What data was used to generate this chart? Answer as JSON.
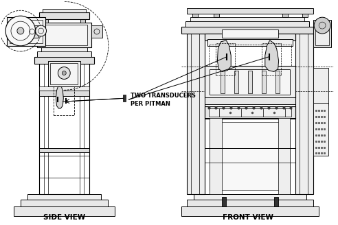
{
  "background_color": "#ffffff",
  "line_color": "#000000",
  "side_view_label": "SIDE VIEW",
  "front_view_label": "FRONT VIEW",
  "annotation_text": "TWO TRANSDUCERS\nPER PITMAN",
  "figsize": [
    4.92,
    3.28
  ],
  "dpi": 100
}
